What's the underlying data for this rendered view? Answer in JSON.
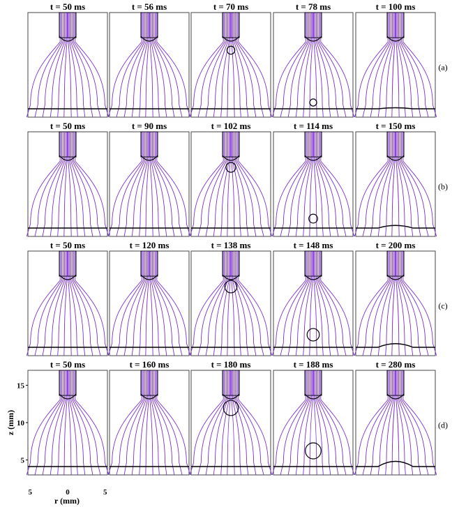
{
  "figure": {
    "rows": [
      {
        "label": "(a)",
        "panels": [
          "t = 50 ms",
          "t = 56 ms",
          "t = 70 ms",
          "t = 78 ms",
          "t = 100 ms"
        ],
        "bubble": [
          {
            "zc": 0.0,
            "r": 0.0
          },
          {
            "zc": 0.0,
            "r": 0.0
          },
          {
            "zc": 0.64,
            "r": 0.045
          },
          {
            "zc": 0.14,
            "r": 0.04
          },
          {
            "zc": 0.0,
            "r": 0.0
          }
        ],
        "bump": [
          0,
          0,
          0,
          0,
          0.02
        ]
      },
      {
        "label": "(b)",
        "panels": [
          "t = 50 ms",
          "t = 90 ms",
          "t = 102 ms",
          "t = 114 ms",
          "t = 150 ms"
        ],
        "bubble": [
          {
            "zc": 0.0,
            "r": 0.0
          },
          {
            "zc": 0.0,
            "r": 0.0
          },
          {
            "zc": 0.66,
            "r": 0.055
          },
          {
            "zc": 0.17,
            "r": 0.05
          },
          {
            "zc": 0.0,
            "r": 0.0
          }
        ],
        "bump": [
          0,
          0,
          0,
          0,
          0.05
        ]
      },
      {
        "label": "(c)",
        "panels": [
          "t = 50 ms",
          "t = 120 ms",
          "t = 138 ms",
          "t = 148 ms",
          "t = 200 ms"
        ],
        "bubble": [
          {
            "zc": 0.0,
            "r": 0.0
          },
          {
            "zc": 0.0,
            "r": 0.0
          },
          {
            "zc": 0.66,
            "r": 0.07
          },
          {
            "zc": 0.2,
            "r": 0.07
          },
          {
            "zc": 0.0,
            "r": 0.0
          }
        ],
        "bump": [
          0,
          0,
          0,
          0,
          0.07
        ]
      },
      {
        "label": "(d)",
        "panels": [
          "t = 50 ms",
          "t = 160 ms",
          "t = 180 ms",
          "t = 188 ms",
          "t = 280 ms"
        ],
        "bubble": [
          {
            "zc": 0.0,
            "r": 0.0
          },
          {
            "zc": 0.0,
            "r": 0.0
          },
          {
            "zc": 0.64,
            "r": 0.085
          },
          {
            "zc": 0.23,
            "r": 0.09
          },
          {
            "zc": 0.0,
            "r": 0.0
          }
        ],
        "bump": [
          0,
          0,
          0,
          0,
          0.1
        ]
      }
    ],
    "yaxis": {
      "label": "z (mm)",
      "ticks": [
        {
          "v": 15,
          "t": "15"
        },
        {
          "v": 10,
          "t": "10"
        },
        {
          "v": 5,
          "t": "5"
        }
      ],
      "range": [
        3,
        17
      ]
    },
    "xaxis": {
      "label": "r (mm)",
      "ticks": [
        {
          "v": -5,
          "t": "5"
        },
        {
          "v": 0,
          "t": "0"
        },
        {
          "v": 5,
          "t": "5"
        }
      ]
    },
    "colors": {
      "field": "#7b2fd6",
      "interface": "#000000",
      "frame": "#444444"
    }
  }
}
